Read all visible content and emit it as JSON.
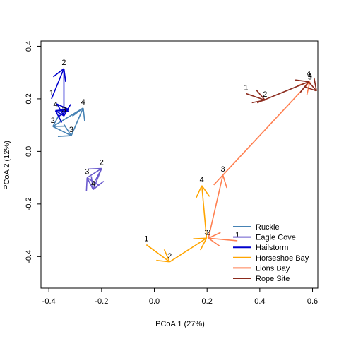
{
  "chart_data": {
    "type": "scatter",
    "xlabel": "PCoA 1 (27%)",
    "ylabel": "PCoA 2 (12%)",
    "xlim": [
      -0.43,
      0.62
    ],
    "ylim": [
      -0.52,
      0.42
    ],
    "xticks": [
      -0.4,
      -0.2,
      0.0,
      0.2,
      0.4,
      0.6
    ],
    "xtick_labels": [
      "-0.4",
      "-0.2",
      "0.0",
      "0.2",
      "0.4",
      "0.6"
    ],
    "yticks": [
      -0.4,
      -0.2,
      0.0,
      0.2,
      0.4
    ],
    "ytick_labels": [
      "-0.4",
      "-0.2",
      "0.0",
      "0.2",
      "0.4"
    ],
    "legend_position": "bottom-right",
    "grid": false,
    "series": [
      {
        "name": "Ruckle",
        "color": "#4682B4",
        "points": [
          {
            "label": "2",
            "x": -0.385,
            "y": 0.095
          },
          {
            "label": "3",
            "x": -0.315,
            "y": 0.06
          },
          {
            "label": "4",
            "x": -0.27,
            "y": 0.165
          }
        ],
        "arrows": [
          {
            "from": [
              -0.385,
              0.095
            ],
            "to": [
              -0.315,
              0.06
            ]
          },
          {
            "from": [
              -0.315,
              0.06
            ],
            "to": [
              -0.27,
              0.165
            ]
          },
          {
            "from": [
              -0.27,
              0.165
            ],
            "to": [
              -0.385,
              0.095
            ]
          }
        ]
      },
      {
        "name": "Eagle Cove",
        "color": "#6A5ACD",
        "points": [
          {
            "label": "3",
            "x": -0.255,
            "y": -0.1
          },
          {
            "label": "2",
            "x": -0.2,
            "y": -0.065
          },
          {
            "label": "4",
            "x": -0.232,
            "y": -0.145
          }
        ],
        "arrows": [
          {
            "from": [
              -0.255,
              -0.1
            ],
            "to": [
              -0.2,
              -0.065
            ]
          },
          {
            "from": [
              -0.2,
              -0.065
            ],
            "to": [
              -0.232,
              -0.145
            ]
          },
          {
            "from": [
              -0.232,
              -0.145
            ],
            "to": [
              -0.255,
              -0.1
            ]
          }
        ]
      },
      {
        "name": "Hailstorm",
        "color": "#0000CD",
        "points": [
          {
            "label": "1",
            "x": -0.39,
            "y": 0.2
          },
          {
            "label": "2",
            "x": -0.343,
            "y": 0.315
          },
          {
            "label": "4",
            "x": -0.375,
            "y": 0.155
          },
          {
            "label": "3",
            "x": -0.343,
            "y": 0.135
          }
        ],
        "arrows": [
          {
            "from": [
              -0.39,
              0.2
            ],
            "to": [
              -0.343,
              0.315
            ]
          },
          {
            "from": [
              -0.343,
              0.315
            ],
            "to": [
              -0.343,
              0.135
            ]
          },
          {
            "from": [
              -0.343,
              0.135
            ],
            "to": [
              -0.375,
              0.155
            ]
          },
          {
            "from": [
              -0.375,
              0.155
            ],
            "to": [
              -0.325,
              0.16
            ]
          }
        ]
      },
      {
        "name": "Horseshoe Bay",
        "color": "#FFA500",
        "points": [
          {
            "label": "1",
            "x": -0.03,
            "y": -0.355
          },
          {
            "label": "2",
            "x": 0.058,
            "y": -0.42
          },
          {
            "label": "3",
            "x": 0.198,
            "y": -0.33
          },
          {
            "label": "4",
            "x": 0.18,
            "y": -0.13
          }
        ],
        "arrows": [
          {
            "from": [
              -0.03,
              -0.355
            ],
            "to": [
              0.058,
              -0.42
            ]
          },
          {
            "from": [
              0.058,
              -0.42
            ],
            "to": [
              0.198,
              -0.33
            ]
          },
          {
            "from": [
              0.198,
              -0.33
            ],
            "to": [
              0.18,
              -0.13
            ]
          }
        ]
      },
      {
        "name": "Lions Bay",
        "color": "#FF7F50",
        "points": [
          {
            "label": "1",
            "x": 0.315,
            "y": -0.34
          },
          {
            "label": "2",
            "x": 0.205,
            "y": -0.33
          },
          {
            "label": "3",
            "x": 0.26,
            "y": -0.09
          },
          {
            "label": "4",
            "x": 0.59,
            "y": 0.265
          }
        ],
        "arrows": [
          {
            "from": [
              0.315,
              -0.34
            ],
            "to": [
              0.205,
              -0.33
            ]
          },
          {
            "from": [
              0.205,
              -0.33
            ],
            "to": [
              0.26,
              -0.09
            ]
          },
          {
            "from": [
              0.26,
              -0.09
            ],
            "to": [
              0.59,
              0.265
            ]
          }
        ]
      },
      {
        "name": "Rope Site",
        "color": "#8B2A1C",
        "points": [
          {
            "label": "1",
            "x": 0.348,
            "y": 0.22
          },
          {
            "label": "2",
            "x": 0.42,
            "y": 0.195
          },
          {
            "label": "4",
            "x": 0.585,
            "y": 0.272
          },
          {
            "label": "3",
            "x": 0.59,
            "y": 0.26
          }
        ],
        "arrows": [
          {
            "from": [
              0.348,
              0.22
            ],
            "to": [
              0.42,
              0.195
            ]
          },
          {
            "from": [
              0.39,
              0.185
            ],
            "to": [
              0.585,
              0.265
            ]
          },
          {
            "from": [
              0.585,
              0.265
            ],
            "to": [
              0.615,
              0.23
            ]
          }
        ]
      }
    ]
  }
}
